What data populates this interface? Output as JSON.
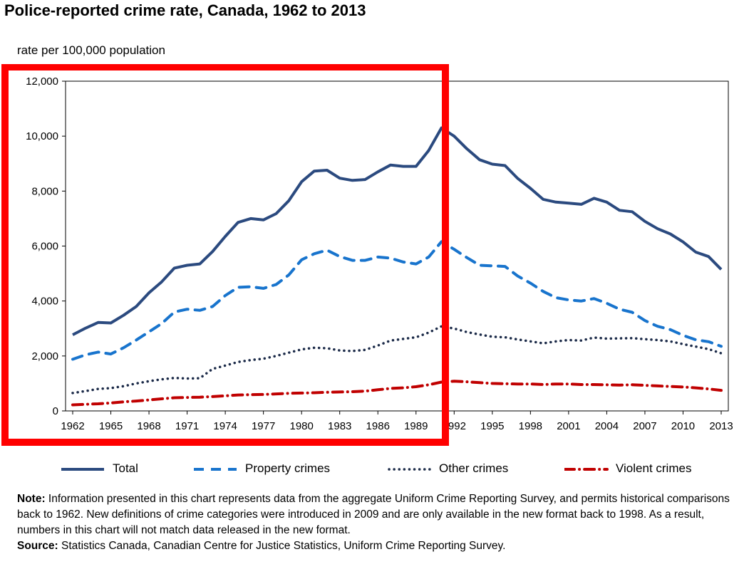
{
  "chart_data": {
    "type": "line",
    "title": "Police-reported crime rate, Canada, 1962 to 2013",
    "ylabel": "rate per 100,000 population",
    "xlabel": "",
    "xlim": [
      1962,
      2013
    ],
    "ylim": [
      0,
      12000
    ],
    "y_ticks": [
      0,
      2000,
      4000,
      6000,
      8000,
      10000,
      12000
    ],
    "y_tick_labels": [
      "0",
      "2,000",
      "4,000",
      "6,000",
      "8,000",
      "10,000",
      "12,000"
    ],
    "x_ticks": [
      1962,
      1965,
      1968,
      1971,
      1974,
      1977,
      1980,
      1983,
      1986,
      1989,
      1992,
      1995,
      1998,
      2001,
      2004,
      2007,
      2010,
      2013
    ],
    "x_tick_labels": [
      "1962",
      "1965",
      "1968",
      "1971",
      "1974",
      "1977",
      "1980",
      "1983",
      "1986",
      "1989",
      "1992",
      "1995",
      "1998",
      "2001",
      "2004",
      "2007",
      "2010",
      "2013"
    ],
    "grid": false,
    "legend_position": "bottom",
    "x": [
      1962,
      1963,
      1964,
      1965,
      1966,
      1967,
      1968,
      1969,
      1970,
      1971,
      1972,
      1973,
      1974,
      1975,
      1976,
      1977,
      1978,
      1979,
      1980,
      1981,
      1982,
      1983,
      1984,
      1985,
      1986,
      1987,
      1988,
      1989,
      1990,
      1991,
      1992,
      1993,
      1994,
      1995,
      1996,
      1997,
      1998,
      1999,
      2000,
      2001,
      2002,
      2003,
      2004,
      2005,
      2006,
      2007,
      2008,
      2009,
      2010,
      2011,
      2012,
      2013
    ],
    "series": [
      {
        "name": "Total",
        "style": "solid",
        "color": "#2B4A7F",
        "values": [
          2770,
          3010,
          3220,
          3200,
          3480,
          3800,
          4300,
          4700,
          5200,
          5300,
          5350,
          5800,
          6350,
          6860,
          7000,
          6950,
          7180,
          7650,
          8340,
          8730,
          8760,
          8470,
          8390,
          8420,
          8700,
          8950,
          8900,
          8900,
          9480,
          10300,
          10000,
          9540,
          9140,
          8980,
          8930,
          8460,
          8100,
          7700,
          7600,
          7560,
          7520,
          7740,
          7600,
          7300,
          7250,
          6900,
          6630,
          6440,
          6150,
          5780,
          5620,
          5150
        ]
      },
      {
        "name": "Property crimes",
        "style": "dashed",
        "color": "#1874CD",
        "values": [
          1880,
          2040,
          2140,
          2070,
          2300,
          2580,
          2880,
          3180,
          3600,
          3700,
          3660,
          3800,
          4200,
          4500,
          4520,
          4460,
          4600,
          4950,
          5500,
          5720,
          5850,
          5620,
          5480,
          5480,
          5600,
          5560,
          5420,
          5350,
          5600,
          6160,
          5880,
          5580,
          5300,
          5280,
          5260,
          4910,
          4650,
          4350,
          4120,
          4040,
          4000,
          4090,
          3920,
          3700,
          3590,
          3290,
          3080,
          2960,
          2750,
          2590,
          2520,
          2350
        ]
      },
      {
        "name": "Other crimes",
        "style": "dotted",
        "color": "#1B2A48",
        "values": [
          650,
          720,
          800,
          830,
          900,
          1000,
          1080,
          1150,
          1200,
          1180,
          1190,
          1530,
          1650,
          1780,
          1850,
          1900,
          2000,
          2120,
          2240,
          2300,
          2280,
          2200,
          2180,
          2220,
          2380,
          2560,
          2620,
          2680,
          2850,
          3080,
          3000,
          2870,
          2780,
          2700,
          2680,
          2600,
          2530,
          2460,
          2530,
          2580,
          2560,
          2670,
          2630,
          2640,
          2650,
          2610,
          2580,
          2530,
          2430,
          2340,
          2250,
          2100
        ]
      },
      {
        "name": "Violent crimes",
        "style": "dashdot",
        "color": "#C00000",
        "values": [
          220,
          240,
          260,
          290,
          330,
          360,
          400,
          440,
          480,
          490,
          500,
          520,
          550,
          580,
          590,
          600,
          620,
          640,
          650,
          660,
          680,
          690,
          700,
          720,
          770,
          820,
          840,
          880,
          950,
          1050,
          1080,
          1060,
          1030,
          1000,
          990,
          980,
          980,
          960,
          980,
          980,
          960,
          960,
          950,
          940,
          950,
          930,
          910,
          890,
          870,
          840,
          800,
          750
        ]
      }
    ]
  },
  "legend": {
    "total": "Total",
    "property": "Property crimes",
    "other": "Other crimes",
    "violent": "Violent crimes"
  },
  "notes": {
    "note_label": "Note:",
    "note_text": " Information presented in this chart represents data from the aggregate Uniform Crime Reporting Survey, and permits historical comparisons back to 1962. New definitions of crime categories were introduced in 2009  and are only available in the new  format back to 1998.  As a result, numbers in this chart will not match data released in the new format.",
    "source_label": "Source:",
    "source_text": " Statistics Canada, Canadian Centre for Justice Statistics, Uniform Crime Reporting Survey."
  },
  "highlight_color": "#FF0000"
}
